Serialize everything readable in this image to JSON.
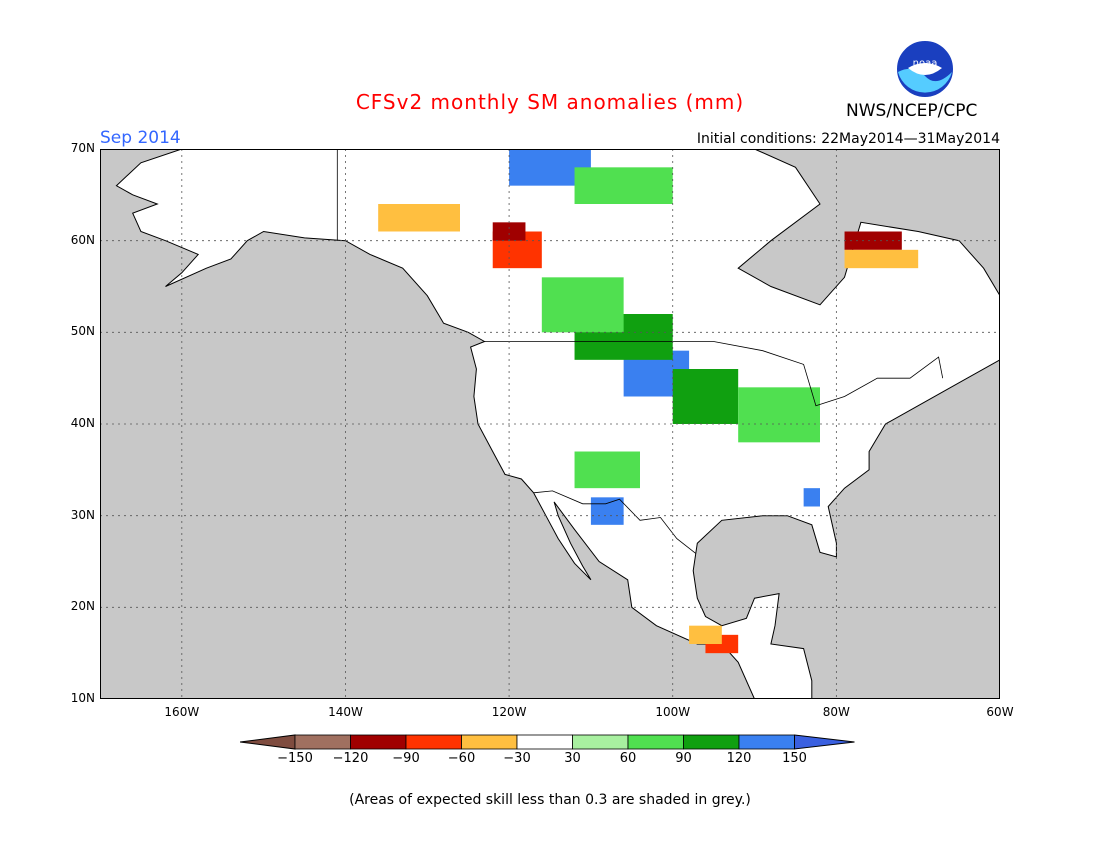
{
  "title": "CFSv2 monthly SM anomalies (mm)",
  "month": "Sep 2014",
  "initial_conditions": "Initial conditions: 22May2014—31May2014",
  "agency": "NWS/NCEP/CPC",
  "logo_text": "NOAA",
  "note": "(Areas of expected skill less than 0.3 are shaded in grey.)",
  "map": {
    "lon_range": [
      -170,
      -60
    ],
    "lat_range": [
      10,
      70
    ],
    "ocean_color": "#c8c8c8",
    "land_color": "#ffffff",
    "border_color": "#000000",
    "lat_ticks": [
      {
        "value": 70,
        "label": "70N"
      },
      {
        "value": 60,
        "label": "60N"
      },
      {
        "value": 50,
        "label": "50N"
      },
      {
        "value": 40,
        "label": "40N"
      },
      {
        "value": 30,
        "label": "30N"
      },
      {
        "value": 20,
        "label": "20N"
      },
      {
        "value": 10,
        "label": "10N"
      }
    ],
    "lon_ticks": [
      {
        "value": -160,
        "label": "160W"
      },
      {
        "value": -140,
        "label": "140W"
      },
      {
        "value": -120,
        "label": "120W"
      },
      {
        "value": -100,
        "label": "100W"
      },
      {
        "value": -80,
        "label": "80W"
      },
      {
        "value": -60,
        "label": "60W"
      }
    ]
  },
  "legend": {
    "colors": [
      "#7f4c3f",
      "#a07060",
      "#a00000",
      "#ff3300",
      "#ffbf40",
      "#ffffff",
      "#a8f0a0",
      "#50e050",
      "#10a010",
      "#3a80f0",
      "#3a60e0"
    ],
    "labels": [
      "−150",
      "−120",
      "−90",
      "−60",
      "−30",
      "30",
      "60",
      "90",
      "120",
      "150"
    ]
  },
  "anomaly_regions": [
    {
      "category": "120",
      "color": "#3a80f0",
      "lon": [
        -106,
        -98
      ],
      "lat": [
        43,
        48
      ]
    },
    {
      "category": "90",
      "color": "#10a010",
      "lon": [
        -112,
        -100
      ],
      "lat": [
        47,
        52
      ]
    },
    {
      "category": "60",
      "color": "#50e050",
      "lon": [
        -116,
        -106
      ],
      "lat": [
        50,
        56
      ]
    },
    {
      "category": "90",
      "color": "#10a010",
      "lon": [
        -100,
        -92
      ],
      "lat": [
        40,
        46
      ]
    },
    {
      "category": "60",
      "color": "#50e050",
      "lon": [
        -92,
        -82
      ],
      "lat": [
        38,
        44
      ]
    },
    {
      "category": "60",
      "color": "#50e050",
      "lon": [
        -112,
        -104
      ],
      "lat": [
        33,
        37
      ]
    },
    {
      "category": "120",
      "color": "#3a80f0",
      "lon": [
        -110,
        -106
      ],
      "lat": [
        29,
        32
      ]
    },
    {
      "category": "120",
      "color": "#3a80f0",
      "lon": [
        -84,
        -82
      ],
      "lat": [
        31,
        33
      ]
    },
    {
      "category": "-60",
      "color": "#ff3300",
      "lon": [
        -122,
        -116
      ],
      "lat": [
        57,
        61
      ]
    },
    {
      "category": "-90",
      "color": "#a00000",
      "lon": [
        -122,
        -118
      ],
      "lat": [
        60,
        62
      ]
    },
    {
      "category": "-30",
      "color": "#ffbf40",
      "lon": [
        -136,
        -126
      ],
      "lat": [
        61,
        64
      ]
    },
    {
      "category": "-90",
      "color": "#a00000",
      "lon": [
        -79,
        -72
      ],
      "lat": [
        59,
        61
      ]
    },
    {
      "category": "-30",
      "color": "#ffbf40",
      "lon": [
        -79,
        -70
      ],
      "lat": [
        57,
        59
      ]
    },
    {
      "category": "-60",
      "color": "#ff3300",
      "lon": [
        -96,
        -92
      ],
      "lat": [
        15,
        17
      ]
    },
    {
      "category": "-30",
      "color": "#ffbf40",
      "lon": [
        -98,
        -94
      ],
      "lat": [
        16,
        18
      ]
    },
    {
      "category": "120",
      "color": "#3a80f0",
      "lon": [
        -120,
        -110
      ],
      "lat": [
        66,
        70
      ]
    },
    {
      "category": "60",
      "color": "#50e050",
      "lon": [
        -112,
        -100
      ],
      "lat": [
        64,
        68
      ]
    }
  ]
}
